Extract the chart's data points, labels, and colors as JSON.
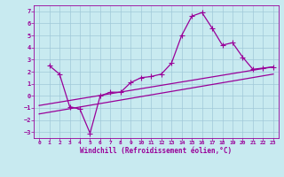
{
  "background_color": "#c8eaf0",
  "grid_color": "#a0c8d8",
  "line_color": "#990099",
  "marker": "+",
  "markersize": 4,
  "linewidth": 0.9,
  "xlabel": "Windchill (Refroidissement éolien,°C)",
  "xlabel_fontsize": 5.5,
  "xtick_fontsize": 4.5,
  "ytick_fontsize": 5,
  "xlim": [
    -0.5,
    23.5
  ],
  "ylim": [
    -3.5,
    7.5
  ],
  "yticks": [
    -3,
    -2,
    -1,
    0,
    1,
    2,
    3,
    4,
    5,
    6,
    7
  ],
  "xticks": [
    0,
    1,
    2,
    3,
    4,
    5,
    6,
    7,
    8,
    9,
    10,
    11,
    12,
    13,
    14,
    15,
    16,
    17,
    18,
    19,
    20,
    21,
    22,
    23
  ],
  "series": [
    {
      "x": [
        1,
        2,
        3,
        4,
        5,
        6,
        7,
        8,
        9,
        10,
        11,
        12,
        13,
        14,
        15,
        16,
        17,
        18,
        19,
        20,
        21,
        22,
        23
      ],
      "y": [
        2.5,
        1.8,
        -0.9,
        -1.1,
        -3.1,
        0.0,
        0.3,
        0.3,
        1.1,
        1.5,
        1.6,
        1.8,
        2.7,
        5.0,
        6.6,
        6.9,
        5.6,
        4.2,
        4.4,
        3.2,
        2.2,
        2.3,
        2.4
      ]
    },
    {
      "x": [
        0,
        23
      ],
      "y": [
        -0.8,
        2.4
      ]
    },
    {
      "x": [
        0,
        23
      ],
      "y": [
        -1.5,
        1.8
      ]
    }
  ]
}
